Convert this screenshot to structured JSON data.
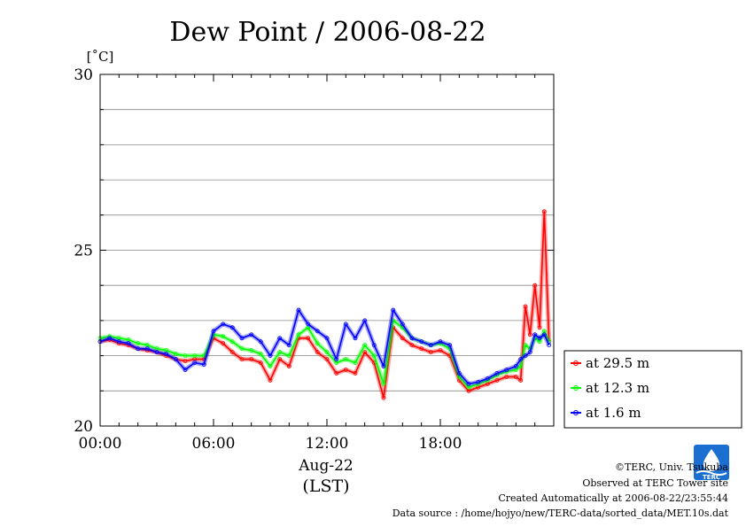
{
  "chart_data": {
    "type": "line",
    "title": "Dew Point / 2006-08-22",
    "ylabel": "[˚C]",
    "xlabel_date": "Aug-22",
    "xlabel": "(LST)",
    "ylim": [
      20,
      30
    ],
    "yticks": [
      20,
      25,
      30
    ],
    "y_minor_grid_step": 1,
    "xlim": [
      0,
      24
    ],
    "xticks": [
      0,
      6,
      12,
      18
    ],
    "xtick_labels": [
      "00:00",
      "06:00",
      "12:00",
      "18:00"
    ],
    "grid": true,
    "legend_position": "right",
    "x": [
      0,
      0.5,
      1,
      1.5,
      2,
      2.5,
      3,
      3.5,
      4,
      4.5,
      5,
      5.5,
      6,
      6.5,
      7,
      7.5,
      8,
      8.5,
      9,
      9.5,
      10,
      10.5,
      11,
      11.5,
      12,
      12.5,
      13,
      13.5,
      14,
      14.5,
      15,
      15.5,
      16,
      16.5,
      17,
      17.5,
      18,
      18.5,
      19,
      19.5,
      20,
      20.5,
      21,
      21.5,
      22,
      22.25,
      22.5,
      22.75,
      23,
      23.25,
      23.5,
      23.75
    ],
    "series": [
      {
        "name": "at 29.5 m",
        "color": "#ff0000",
        "values": [
          22.4,
          22.45,
          22.35,
          22.3,
          22.2,
          22.15,
          22.1,
          22.0,
          21.9,
          21.85,
          21.9,
          21.9,
          22.5,
          22.35,
          22.1,
          21.9,
          21.9,
          21.8,
          21.3,
          21.9,
          21.7,
          22.5,
          22.5,
          22.1,
          21.9,
          21.5,
          21.6,
          21.5,
          22.1,
          21.8,
          20.8,
          22.8,
          22.5,
          22.3,
          22.2,
          22.1,
          22.15,
          22.0,
          21.3,
          21.0,
          21.1,
          21.2,
          21.3,
          21.4,
          21.4,
          21.3,
          23.4,
          22.6,
          24.0,
          22.8,
          26.1,
          22.4
        ]
      },
      {
        "name": "at 12.3 m",
        "color": "#00ff00",
        "values": [
          22.5,
          22.55,
          22.5,
          22.45,
          22.35,
          22.3,
          22.2,
          22.15,
          22.05,
          22.0,
          22.0,
          22.0,
          22.6,
          22.55,
          22.4,
          22.2,
          22.15,
          22.05,
          21.7,
          22.1,
          22.0,
          22.6,
          22.8,
          22.35,
          22.1,
          21.8,
          21.9,
          21.8,
          22.3,
          22.0,
          21.2,
          23.0,
          22.8,
          22.5,
          22.4,
          22.3,
          22.35,
          22.2,
          21.4,
          21.1,
          21.2,
          21.3,
          21.45,
          21.55,
          21.6,
          21.7,
          22.3,
          22.2,
          22.5,
          22.4,
          22.7,
          22.4
        ]
      },
      {
        "name": "at 1.6 m",
        "color": "#0000ff",
        "values": [
          22.4,
          22.5,
          22.4,
          22.35,
          22.2,
          22.2,
          22.1,
          22.05,
          21.9,
          21.6,
          21.8,
          21.75,
          22.7,
          22.9,
          22.8,
          22.5,
          22.6,
          22.4,
          22.0,
          22.5,
          22.3,
          23.3,
          22.9,
          22.7,
          22.5,
          21.9,
          22.9,
          22.5,
          23.0,
          22.3,
          21.7,
          23.3,
          22.9,
          22.5,
          22.4,
          22.3,
          22.4,
          22.3,
          21.5,
          21.2,
          21.25,
          21.35,
          21.5,
          21.6,
          21.7,
          21.9,
          22.0,
          22.1,
          22.6,
          22.5,
          22.6,
          22.3
        ]
      }
    ]
  },
  "footer": {
    "copyright": "©TERC, Univ. Tsukuba",
    "observed": "Observed at TERC Tower site",
    "created": "Created Automatically at 2006-08-22/23:55:44",
    "source": "Data source : /home/hojyo/new/TERC-data/sorted_data/MET.10s.dat"
  },
  "logo": {
    "text": "TERC",
    "color": "#1a6fd1"
  }
}
